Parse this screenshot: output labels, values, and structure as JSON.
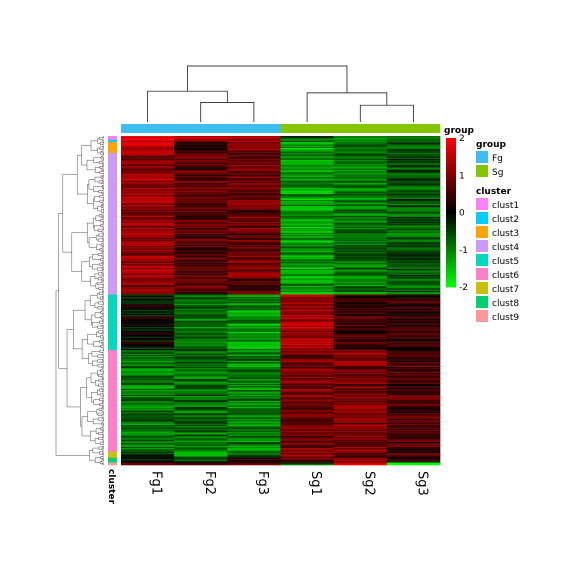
{
  "chart_data": {
    "type": "heatmap",
    "columns": [
      "Fg1",
      "Fg2",
      "Fg3",
      "Sg1",
      "Sg2",
      "Sg3"
    ],
    "column_groups": [
      "Fg",
      "Fg",
      "Fg",
      "Sg",
      "Sg",
      "Sg"
    ],
    "annotation_col_title": "group",
    "annotation_row_title": "cluster",
    "groups": [
      {
        "name": "Fg",
        "color": "#3dbdf0"
      },
      {
        "name": "Sg",
        "color": "#84c400"
      }
    ],
    "clusters": [
      {
        "name": "clust1",
        "color": "#ff80ff",
        "rows": 3
      },
      {
        "name": "clust2",
        "color": "#00ccff",
        "rows": 2
      },
      {
        "name": "clust3",
        "color": "#ffa500",
        "rows": 9
      },
      {
        "name": "clust4",
        "color": "#cc99ff",
        "rows": 117
      },
      {
        "name": "clust5",
        "color": "#00d8c0",
        "rows": 46
      },
      {
        "name": "clust6",
        "color": "#ff80c8",
        "rows": 84
      },
      {
        "name": "clust7",
        "color": "#c8c000",
        "rows": 5
      },
      {
        "name": "clust8",
        "color": "#00d070",
        "rows": 4
      },
      {
        "name": "clust9",
        "color": "#ff9999",
        "rows": 2
      }
    ],
    "cluster_profiles": {
      "clust1": [
        1.8,
        1.5,
        1.2,
        -0.8,
        -1.2,
        -1.0
      ],
      "clust2": [
        1.5,
        1.0,
        1.2,
        -1.0,
        -1.1,
        -0.7
      ],
      "clust3": [
        1.4,
        0.5,
        1.0,
        -1.3,
        -0.8,
        -0.6
      ],
      "clust4": [
        1.1,
        0.7,
        0.8,
        -1.2,
        -0.9,
        -0.7
      ],
      "clust5": [
        -0.1,
        -0.9,
        -1.1,
        1.3,
        0.5,
        0.4
      ],
      "clust6": [
        -0.9,
        -0.8,
        -1.0,
        0.9,
        0.9,
        0.6
      ],
      "clust7": [
        -0.4,
        -1.0,
        -0.6,
        1.0,
        0.6,
        0.4
      ],
      "clust8": [
        -0.3,
        -0.5,
        0.4,
        0.6,
        1.0,
        0.2
      ],
      "clust9": [
        0.3,
        0.2,
        1.0,
        -0.5,
        2.0,
        -2.0
      ]
    },
    "color_scale": {
      "min": -2,
      "max": 2,
      "low": "#00ff00",
      "mid": "#000000",
      "high": "#ff0000",
      "ticks": [
        2,
        1,
        0,
        -1,
        -2
      ],
      "tick_labels": [
        "2",
        "1",
        "0",
        "-1",
        "-2"
      ]
    },
    "col_dendrogram": {
      "merges": [
        [
          1,
          2,
          0.35
        ],
        [
          0,
          "m0",
          0.55
        ],
        [
          4,
          5,
          0.3
        ],
        [
          3,
          "m2",
          0.52
        ],
        [
          "m1",
          "m3",
          1.0
        ]
      ]
    },
    "row_dendrogram": true,
    "legend": {
      "position": "right"
    }
  }
}
